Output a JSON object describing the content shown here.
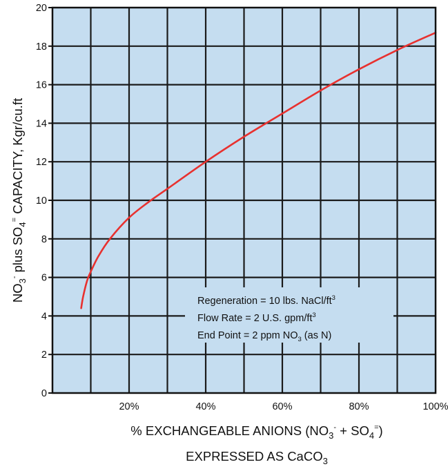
{
  "chart_data": {
    "type": "line",
    "xlabel_line1": "% EXCHANGEABLE ANIONS (NO",
    "xlabel_line1_sub1": "3",
    "xlabel_line1_sup1": "-",
    "xlabel_line1_mid": " + SO",
    "xlabel_line1_sub2": "4",
    "xlabel_line1_sup2": "=",
    "xlabel_line1_end": ")",
    "xlabel_line2": "EXPRESSED AS CaCO",
    "xlabel_line2_sub": "3",
    "ylabel_part1": "NO",
    "ylabel_sub1": "3",
    "ylabel_sup1": "-",
    "ylabel_part2": " plus SO",
    "ylabel_sub2": "4",
    "ylabel_sup2": "=",
    "ylabel_part3": " CAPACITY, Kgr/cu.ft",
    "xlim": [
      0,
      100
    ],
    "ylim": [
      0,
      20
    ],
    "x_ticks": [
      20,
      40,
      60,
      80,
      100
    ],
    "x_tick_labels": [
      "20%",
      "40%",
      "60%",
      "80%",
      "100%"
    ],
    "y_ticks": [
      0,
      2,
      4,
      6,
      8,
      10,
      12,
      14,
      16,
      18,
      20
    ],
    "y_tick_labels": [
      "0",
      "2",
      "4",
      "6",
      "8",
      "10",
      "12",
      "14",
      "16",
      "18",
      "20"
    ],
    "grid": true,
    "series": [
      {
        "color": "#e8312f",
        "x": [
          7.5,
          8,
          9,
          10,
          12,
          15,
          20,
          25,
          30,
          40,
          50,
          60,
          70,
          80,
          90,
          100
        ],
        "y": [
          4.4,
          5.0,
          5.8,
          6.3,
          7.1,
          8.0,
          9.1,
          9.9,
          10.6,
          12.0,
          13.3,
          14.5,
          15.7,
          16.8,
          17.8,
          18.7
        ]
      }
    ],
    "annotation": {
      "line1": "Regeneration = 10 lbs. NaCl/ft",
      "line1_sup": "3",
      "line2": "Flow Rate = 2 U.S. gpm/ft",
      "line2_sup": "3",
      "line3": "End Point = 2 ppm NO",
      "line3_sub": "3",
      "line3_end": " (as N)"
    },
    "colors": {
      "plot_background": "#c5ddf0",
      "grid": "#1a1a1a",
      "curve": "#e8312f"
    }
  }
}
